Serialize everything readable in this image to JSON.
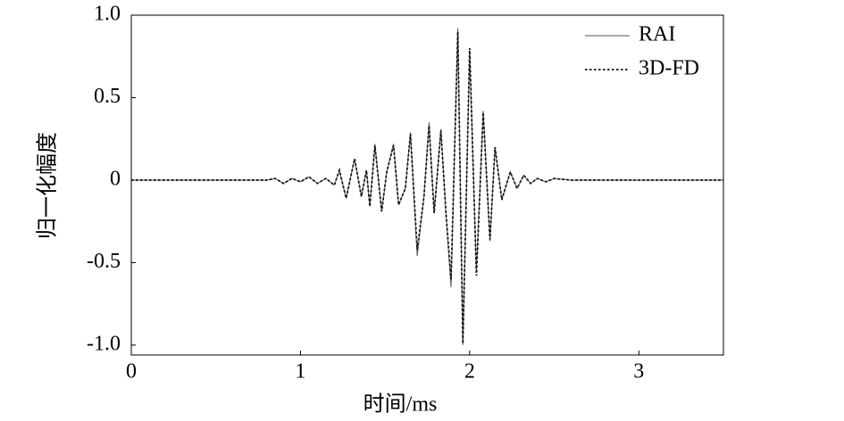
{
  "chart_data": {
    "type": "line",
    "x_label": "时间/ms",
    "y_label": "归一化幅度",
    "x": [
      0,
      0.8,
      0.85,
      0.9,
      0.95,
      1.0,
      1.05,
      1.1,
      1.15,
      1.2,
      1.23,
      1.27,
      1.32,
      1.36,
      1.39,
      1.41,
      1.44,
      1.48,
      1.51,
      1.55,
      1.58,
      1.62,
      1.65,
      1.69,
      1.73,
      1.76,
      1.79,
      1.83,
      1.86,
      1.89,
      1.93,
      1.96,
      2.0,
      2.04,
      2.08,
      2.12,
      2.15,
      2.19,
      2.24,
      2.28,
      2.32,
      2.36,
      2.4,
      2.45,
      2.5,
      2.6,
      3.5
    ],
    "series": [
      {
        "name": "RAI",
        "color": "#555555",
        "dash": "solid",
        "values": [
          0,
          0,
          0.01,
          -0.02,
          0.01,
          -0.01,
          0.02,
          -0.02,
          0.01,
          -0.03,
          0.06,
          -0.11,
          0.13,
          -0.1,
          0.06,
          -0.16,
          0.22,
          -0.19,
          0.05,
          0.22,
          -0.15,
          -0.05,
          0.29,
          -0.46,
          -0.1,
          0.35,
          -0.2,
          0.31,
          -0.2,
          -0.65,
          0.92,
          -1.0,
          0.78,
          -0.56,
          0.42,
          -0.37,
          0.2,
          -0.12,
          0.05,
          -0.05,
          0.03,
          -0.02,
          0.01,
          -0.01,
          0.01,
          0,
          0
        ]
      },
      {
        "name": "3D-FD",
        "color": "#111111",
        "dash": "dotted",
        "values": [
          0,
          0,
          0.01,
          -0.02,
          0.01,
          -0.01,
          0.02,
          -0.02,
          0.01,
          -0.03,
          0.06,
          -0.11,
          0.13,
          -0.1,
          0.06,
          -0.16,
          0.21,
          -0.19,
          0.05,
          0.21,
          -0.15,
          -0.05,
          0.28,
          -0.42,
          -0.1,
          0.33,
          -0.2,
          0.3,
          -0.2,
          -0.6,
          0.9,
          -0.99,
          0.8,
          -0.58,
          0.41,
          -0.36,
          0.2,
          -0.12,
          0.05,
          -0.05,
          0.03,
          -0.02,
          0.01,
          -0.01,
          0.01,
          0,
          0
        ]
      }
    ],
    "xlim": [
      0,
      3.5
    ],
    "ylim": [
      -1.06,
      1.0
    ],
    "xticks": [
      0,
      1,
      2,
      3
    ],
    "yticks": [
      {
        "value": 1,
        "label": "1.0"
      },
      0.5,
      0,
      -0.5,
      {
        "value": -1,
        "label": "-1.0"
      }
    ],
    "legend": "upper right"
  }
}
